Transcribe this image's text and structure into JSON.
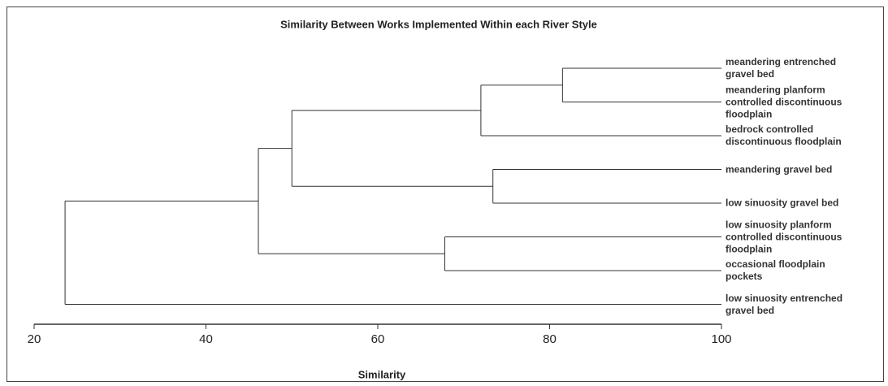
{
  "chart_data": {
    "type": "dendrogram",
    "title": "Similarity Between Works Implemented Within each River Style",
    "xlabel": "Similarity",
    "xlim": [
      20,
      100
    ],
    "xticks": [
      20,
      40,
      60,
      80,
      100
    ],
    "color": "#333333",
    "tree": {
      "similarity": 23.6,
      "children": [
        {
          "similarity": 46.1,
          "children": [
            {
              "similarity": 50,
              "children": [
                {
                  "similarity": 72,
                  "children": [
                    {
                      "similarity": 81.5,
                      "children": [
                        {
                          "label": "meandering entrenched\ngravel bed"
                        },
                        {
                          "label": "meandering planform\ncontrolled discontinuous\nfloodplain"
                        }
                      ]
                    },
                    {
                      "label": "bedrock controlled\ndiscontinuous floodplain"
                    }
                  ]
                },
                {
                  "similarity": 73.4,
                  "children": [
                    {
                      "label": "meandering gravel bed"
                    },
                    {
                      "label": "low sinuosity gravel bed"
                    }
                  ]
                }
              ]
            },
            {
              "similarity": 67.8,
              "children": [
                {
                  "label": "low sinuosity planform\ncontrolled discontinuous\nfloodplain"
                },
                {
                  "label": "occasional floodplain\npockets"
                }
              ]
            }
          ]
        },
        {
          "label": "low sinuosity entrenched\ngravel bed"
        }
      ]
    }
  }
}
